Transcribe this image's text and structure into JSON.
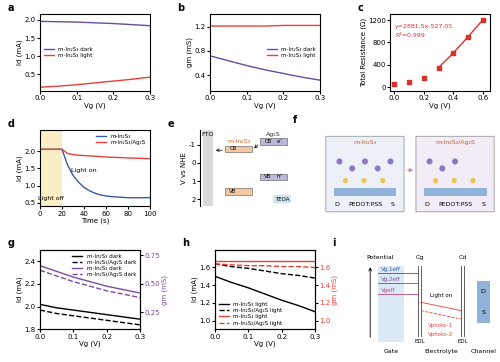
{
  "chart_data": [
    {
      "panel_label": "a",
      "type": "line",
      "x_label": "Vg (V)",
      "y_label": "Id (mA)",
      "x": [
        0,
        0.05,
        0.1,
        0.15,
        0.2,
        0.25,
        0.3
      ],
      "series": [
        {
          "name": "m-In₂S₃ dark",
          "color": "#6a4c9c",
          "values": [
            1.96,
            1.95,
            1.94,
            1.92,
            1.9,
            1.87,
            1.84
          ]
        },
        {
          "name": "m-In₂S₃ light",
          "color": "#e5413b",
          "values": [
            0.14,
            0.17,
            0.21,
            0.26,
            0.31,
            0.36,
            0.42
          ]
        }
      ],
      "xlim": [
        0,
        0.3
      ],
      "xticks": [
        {
          "value": 0,
          "label": "0.0"
        },
        0.1,
        0.2,
        0.3
      ],
      "ylim": [
        0.05,
        2.15
      ],
      "yticks": [
        0.5,
        {
          "value": 1,
          "label": "1.0"
        },
        1.5,
        {
          "value": 2,
          "label": "2.0"
        }
      ],
      "legend": "center left"
    },
    {
      "panel_label": "b",
      "type": "line",
      "x_label": "Vg (V)",
      "y_label": "gm (mS)",
      "x": [
        0,
        0.05,
        0.1,
        0.15,
        0.2,
        0.25,
        0.3
      ],
      "series": [
        {
          "name": "m-In₂S₃ dark",
          "color": "#6a4c9c",
          "values": [
            0.72,
            0.64,
            0.56,
            0.49,
            0.43,
            0.37,
            0.32
          ]
        },
        {
          "name": "m-In₂S₃ light",
          "color": "#e5413b",
          "values": [
            1.21,
            1.21,
            1.21,
            1.21,
            1.22,
            1.22,
            1.22
          ]
        }
      ],
      "xlim": [
        0,
        0.3
      ],
      "xticks": [
        {
          "value": 0,
          "label": "0.0"
        },
        0.1,
        0.2,
        0.3
      ],
      "ylim": [
        0.15,
        1.4
      ],
      "yticks": [
        0.4,
        0.8,
        1.2
      ],
      "legend": "center right"
    },
    {
      "panel_label": "c",
      "type": "scatter",
      "x_label": "Vg (V)",
      "y_label": "Total Resistance (Ω)",
      "x": [
        0,
        0.1,
        0.2,
        0.3,
        0.4,
        0.5,
        0.6
      ],
      "series": [
        {
          "type": "scatter",
          "color": "#d7322c",
          "marker": "square",
          "values": [
            60,
            100,
            170,
            350,
            610,
            900,
            1200
          ]
        },
        {
          "type": "line",
          "color": "#d7322c",
          "x": [
            0.3,
            0.4,
            0.5,
            0.6
          ],
          "values": [
            350,
            610,
            900,
            1200
          ]
        }
      ],
      "annotations": [
        "y=2881.5x-527.05",
        "R²=0.999"
      ],
      "xlim": [
        -0.03,
        0.65
      ],
      "xticks": [
        {
          "value": 0,
          "label": "0.0"
        },
        0.2,
        0.4,
        0.6
      ],
      "ylim": [
        -60,
        1300
      ],
      "yticks": [
        0,
        400,
        800,
        1200
      ]
    },
    {
      "panel_label": "d",
      "type": "line",
      "x_label": "Time (s)",
      "y_label": "Id (mA)",
      "x": [
        0,
        5,
        10,
        15,
        20,
        25,
        30,
        35,
        40,
        45,
        50,
        55,
        60,
        65,
        70,
        75,
        80,
        85,
        90,
        95,
        100
      ],
      "series": [
        {
          "name": "m-In₂S₃",
          "color": "#3a5ba0",
          "values": [
            2.05,
            2.05,
            2.05,
            2.05,
            2.05,
            1.6,
            1.3,
            1.1,
            0.95,
            0.85,
            0.78,
            0.73,
            0.7,
            0.68,
            0.67,
            0.66,
            0.65,
            0.65,
            0.65,
            0.65,
            0.65
          ]
        },
        {
          "name": "m-In₂S₃/Ag₂S",
          "color": "#e5413b",
          "values": [
            2.05,
            2.05,
            2.05,
            2.05,
            2.05,
            1.93,
            1.9,
            1.88,
            1.87,
            1.86,
            1.85,
            1.84,
            1.83,
            1.82,
            1.815,
            1.81,
            1.8,
            1.795,
            1.79,
            1.785,
            1.78
          ]
        }
      ],
      "shade": {
        "x": [
          0,
          20
        ],
        "color": "#fbeec4"
      },
      "annotations": [
        "Light off",
        "Light on"
      ],
      "xlim": [
        0,
        100
      ],
      "xticks": [
        0,
        20,
        40,
        60,
        80,
        100
      ],
      "ylim": [
        0.4,
        2.6
      ],
      "yticks": [
        0.5,
        {
          "value": 1,
          "label": "1.0"
        },
        1.5,
        {
          "value": 2,
          "label": "2.0"
        }
      ],
      "legend": "upper right"
    },
    {
      "panel_label": "g",
      "type": "line",
      "x_label": "Vg (V)",
      "y_label": "Id (mA)",
      "y2_label": "gm (mS)",
      "x": [
        0,
        0.05,
        0.1,
        0.15,
        0.2,
        0.25,
        0.3
      ],
      "series": [
        {
          "name": "m-In₂S₃ dark",
          "color": "#000000",
          "line_style": "solid",
          "values": [
            2.02,
            1.99,
            1.97,
            1.95,
            1.93,
            1.91,
            1.89
          ]
        },
        {
          "name": "m-In₂S₃/Ag₂S dark",
          "color": "#000000",
          "line_style": "dashed",
          "values": [
            1.97,
            1.94,
            1.92,
            1.9,
            1.88,
            1.86,
            1.84
          ]
        },
        {
          "name": "m-In₂S₃ dark",
          "color": "#7a4fa3",
          "line_style": "solid",
          "axis": "y2",
          "values": [
            0.66,
            0.61,
            0.56,
            0.52,
            0.48,
            0.45,
            0.42
          ]
        },
        {
          "name": "m-In₂S₃/Ag₂S dark",
          "color": "#7a4fa3",
          "line_style": "dashed",
          "axis": "y2",
          "values": [
            0.62,
            0.57,
            0.52,
            0.48,
            0.44,
            0.41,
            0.38
          ]
        }
      ],
      "xlim": [
        0,
        0.3
      ],
      "xticks": [
        {
          "value": 0,
          "label": "0.0"
        },
        0.1,
        0.2,
        0.3
      ],
      "ylim": [
        1.8,
        2.5
      ],
      "yticks": [
        1.8,
        {
          "value": 2,
          "label": "2.0"
        },
        2.2,
        2.4
      ],
      "y2lim": [
        0.1,
        0.8
      ],
      "y2ticks": [
        0.25,
        {
          "value": 0.5,
          "label": "0.50"
        },
        0.75
      ],
      "legend": "upper right"
    },
    {
      "panel_label": "h",
      "type": "line",
      "x_label": "Vg (V)",
      "y_label": "Id (mA)",
      "y2_label": "gm (mS)",
      "x": [
        0,
        0.05,
        0.1,
        0.15,
        0.2,
        0.25,
        0.3
      ],
      "series": [
        {
          "name": "m-In₂S₃ light",
          "color": "#000000",
          "line_style": "solid",
          "values": [
            1.5,
            1.43,
            1.37,
            1.3,
            1.23,
            1.17,
            1.1
          ]
        },
        {
          "name": "m-In₂S₃/Ag₂S light",
          "color": "#000000",
          "line_style": "dashed",
          "values": [
            1.64,
            1.61,
            1.59,
            1.56,
            1.53,
            1.51,
            1.48
          ]
        },
        {
          "name": "m-In₂S₃ light",
          "color": "#e5413b",
          "line_style": "solid",
          "axis": "y2",
          "values": [
            1.67,
            1.67,
            1.67,
            1.67,
            1.67,
            1.67,
            1.67
          ]
        },
        {
          "name": "m-In₂S₃/Ag₂S light",
          "color": "#e5413b",
          "line_style": "dashed",
          "axis": "y2",
          "values": [
            1.64,
            1.63,
            1.62,
            1.62,
            1.61,
            1.61,
            1.6
          ]
        }
      ],
      "xlim": [
        0,
        0.3
      ],
      "xticks": [
        {
          "value": 0,
          "label": "0.0"
        },
        0.1,
        0.2,
        0.3
      ],
      "ylim": [
        0.9,
        1.8
      ],
      "yticks": [
        {
          "value": 1,
          "label": "1.0"
        },
        1.2,
        1.4,
        1.6
      ],
      "y2lim": [
        0.9,
        1.8
      ],
      "y2ticks": [
        {
          "value": 1,
          "label": "1.0"
        },
        1.2,
        1.4,
        1.6
      ],
      "legend": "lower left"
    }
  ],
  "diagrams": {
    "e": {
      "panel_label": "e",
      "y_label": "V vs NHE",
      "ylim": [
        2.4,
        -1.8
      ],
      "yticks": [
        -1,
        0,
        1,
        2
      ],
      "substrate": "FTO",
      "bands": [
        {
          "name": "m-In₂S₃",
          "CB": -0.6,
          "VB": 1.4,
          "color": "#f4c7a1"
        },
        {
          "name": "Ag₂S",
          "CB": -1.0,
          "VB": 0.6,
          "color": "#b9b9d9"
        }
      ],
      "band_labels": [
        "CB",
        "VB"
      ],
      "carriers": [
        "e⁻",
        "h⁺"
      ],
      "scavenger": "TEOA"
    },
    "f": {
      "panel_label": "f",
      "titles": [
        "m-In₂S₃",
        "m-In₂S₃/Ag₂S"
      ],
      "channel_labels": [
        "D",
        "PEDOT:PSS",
        "S"
      ]
    },
    "i": {
      "panel_label": "i",
      "axis_label": "Potential",
      "capacitors": [
        "Cg",
        "Cd"
      ],
      "edl": [
        "EDL",
        "EDL"
      ],
      "regions": [
        "Gate",
        "Electrolyte",
        "Channel"
      ],
      "levels": [
        "Vg,1eff",
        "Vg,2eff",
        "Vgeff"
      ],
      "light_label": "Light on",
      "photo_labels": [
        "Vphoto-1",
        "Vphoto-2"
      ],
      "channel_terminals": [
        "D",
        "S"
      ]
    }
  }
}
